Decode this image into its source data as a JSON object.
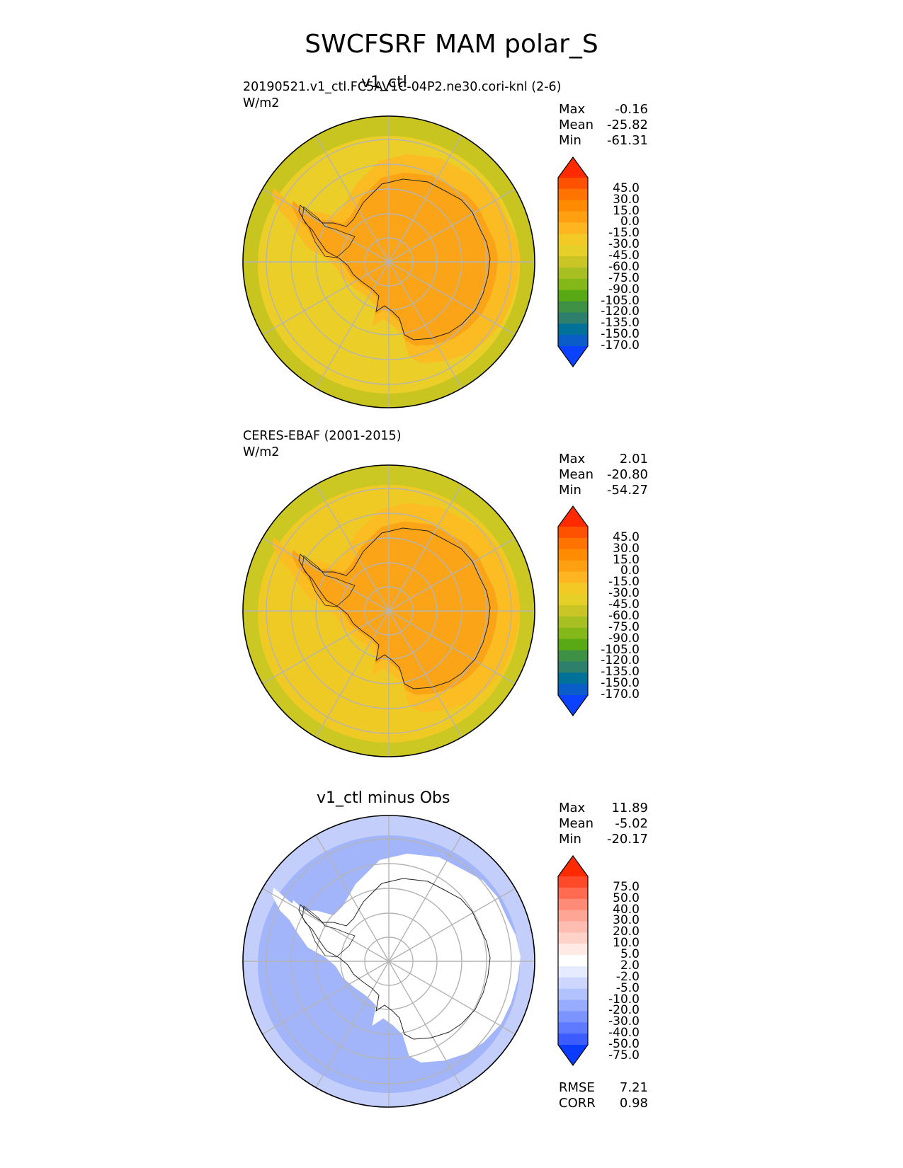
{
  "figure_title": "SWCFSRF MAM polar_S",
  "panels": [
    {
      "id": "test",
      "title": "v1_ctl",
      "info_line": "20190521.v1_ctl.FC5AV1C-04P2.ne30.cori-knl (2-6)",
      "units": "W/m2",
      "stats": [
        {
          "name": "Max",
          "value": "-0.16"
        },
        {
          "name": "Mean",
          "value": "-25.82"
        },
        {
          "name": "Min",
          "value": "-61.31"
        }
      ],
      "colorbar": {
        "levels": [
          "45.0",
          "30.0",
          "15.0",
          "0.0",
          "-15.0",
          "-30.0",
          "-45.0",
          "-60.0",
          "-75.0",
          "-90.0",
          "-105.0",
          "-120.0",
          "-135.0",
          "-150.0",
          "-170.0"
        ],
        "colors": [
          "#ff2a00",
          "#ff5200",
          "#ff7300",
          "#ff8c00",
          "#ffa010",
          "#ffb520",
          "#f2c925",
          "#e6d028",
          "#c8c524",
          "#a7bf20",
          "#84b819",
          "#58a914",
          "#3e9144",
          "#2e7f6c",
          "#00729a",
          "#0a5cc8",
          "#0a42ff"
        ]
      },
      "map_colors": {
        "outer": "#c8c520",
        "mid": "#ecce28",
        "inner": "#fbbb22",
        "land": "#fba418"
      }
    },
    {
      "id": "reference",
      "title": "",
      "info_line": "CERES-EBAF (2001-2015)",
      "units": "W/m2",
      "stats": [
        {
          "name": "Max",
          "value": "2.01"
        },
        {
          "name": "Mean",
          "value": "-20.80"
        },
        {
          "name": "Min",
          "value": "-54.27"
        }
      ],
      "colorbar": {
        "levels": [
          "45.0",
          "30.0",
          "15.0",
          "0.0",
          "-15.0",
          "-30.0",
          "-45.0",
          "-60.0",
          "-75.0",
          "-90.0",
          "-105.0",
          "-120.0",
          "-135.0",
          "-150.0",
          "-170.0"
        ],
        "colors": [
          "#ff2a00",
          "#ff5200",
          "#ff7300",
          "#ff8c00",
          "#ffa010",
          "#ffb520",
          "#f2c925",
          "#e6d028",
          "#c8c524",
          "#a7bf20",
          "#84b819",
          "#58a914",
          "#3e9144",
          "#2e7f6c",
          "#00729a",
          "#0a5cc8",
          "#0a42ff"
        ]
      },
      "map_colors": {
        "outer": "#cbc824",
        "mid": "#efca25",
        "inner": "#fbbd22",
        "land": "#fba418"
      }
    },
    {
      "id": "diff",
      "title": "v1_ctl minus Obs",
      "info_line": "",
      "units": "",
      "stats": [
        {
          "name": "Max",
          "value": "11.89"
        },
        {
          "name": "Mean",
          "value": "-5.02"
        },
        {
          "name": "Min",
          "value": "-20.17"
        }
      ],
      "colorbar": {
        "levels": [
          "75.0",
          "50.0",
          "40.0",
          "30.0",
          "20.0",
          "10.0",
          "5.0",
          "2.0",
          "-2.0",
          "-5.0",
          "-10.0",
          "-20.0",
          "-30.0",
          "-40.0",
          "-50.0",
          "-75.0"
        ],
        "colors": [
          "#ff2a00",
          "#ff4a2a",
          "#ff6a50",
          "#ff8a75",
          "#ffa595",
          "#ffbcb0",
          "#ffd2c8",
          "#ffeae5",
          "#ffffff",
          "#e6ebff",
          "#cdd6ff",
          "#b2c2ff",
          "#97acff",
          "#7b94ff",
          "#5e7aff",
          "#3d5cff",
          "#0a3cff"
        ]
      },
      "map_colors": {
        "outer": "#c3cefb",
        "mid": "#a3b5fa",
        "inner": "#ffffff",
        "land": "#ffffff"
      },
      "metrics": [
        {
          "name": "RMSE",
          "value": "7.21"
        },
        {
          "name": "CORR",
          "value": "0.98"
        }
      ]
    }
  ]
}
